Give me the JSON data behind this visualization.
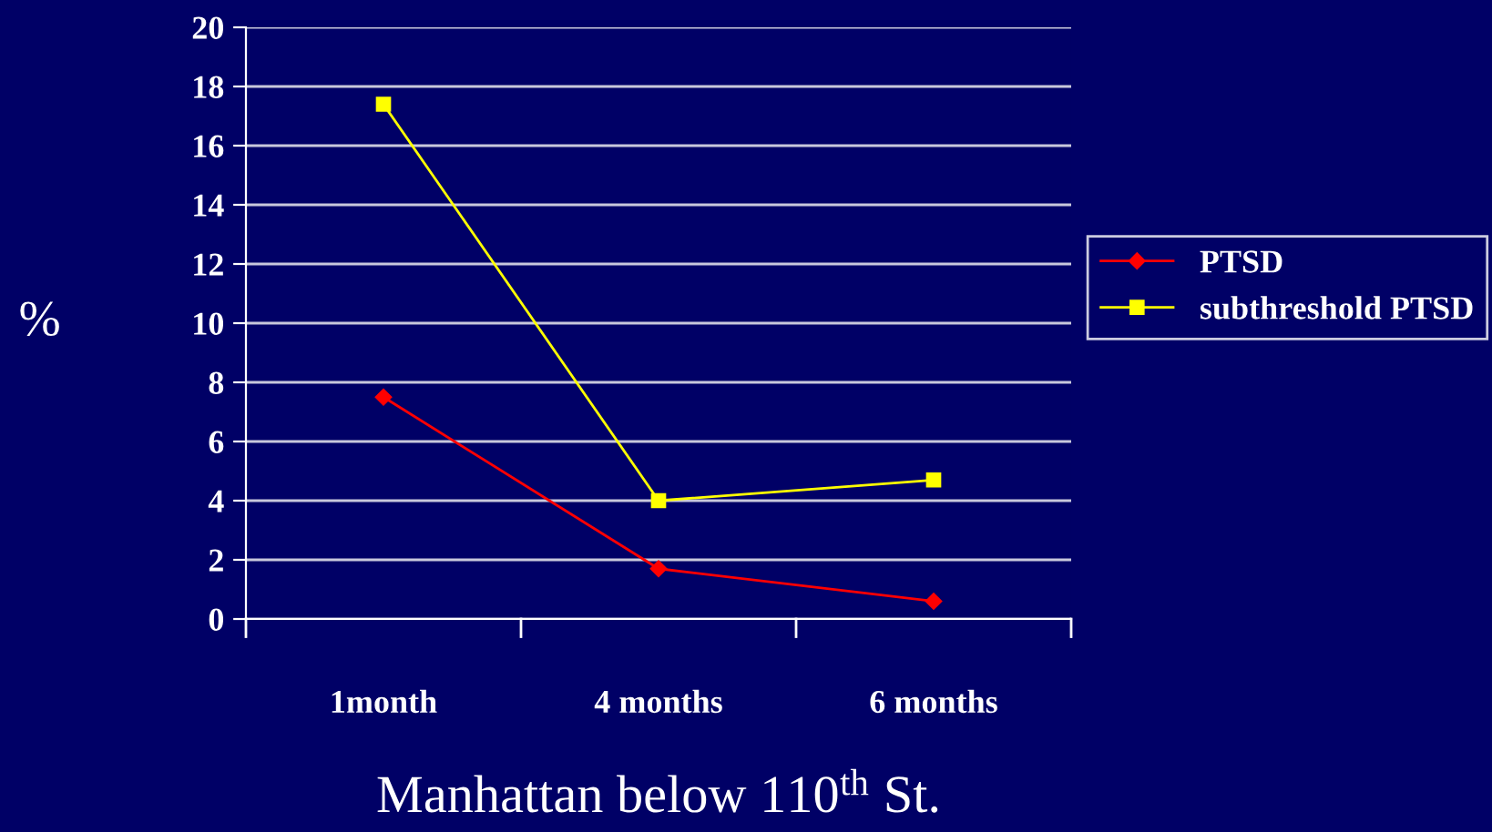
{
  "chart_data": {
    "type": "line",
    "xlabel": "Manhattan below 110$^{th}$ St.",
    "ylabel": "%",
    "categories": [
      "1month",
      "4 months",
      "6 months"
    ],
    "series": [
      {
        "name": "PTSD",
        "color": "#ff0000",
        "marker": "diamond",
        "values": [
          7.5,
          1.7,
          0.6
        ]
      },
      {
        "name": "subthreshold PTSD",
        "color": "#ffff00",
        "marker": "square",
        "values": [
          17.4,
          4.0,
          4.7
        ]
      }
    ],
    "ylim": [
      0,
      20
    ],
    "yticks": [
      0,
      2,
      4,
      6,
      8,
      10,
      12,
      14,
      16,
      18,
      20
    ],
    "grid": "y",
    "legend": "right",
    "line_style": "solid"
  }
}
